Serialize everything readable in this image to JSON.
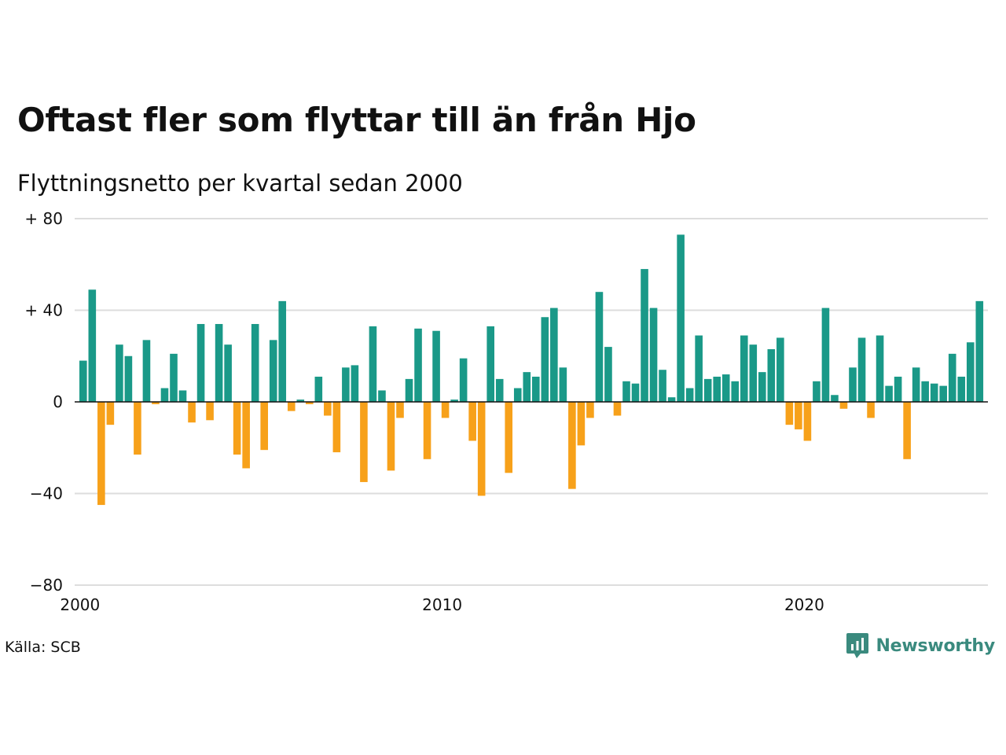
{
  "title": "Oftast fler som flyttar till än från Hjo",
  "subtitle": "Flyttningsnetto per kvartal sedan 2000",
  "source": "Källa: SCB",
  "brand": {
    "name": "Newsworthy",
    "icon": "newsworthy-logo-icon",
    "color": "#3a8a7e"
  },
  "colors": {
    "positive": "#1a9988",
    "negative": "#f7a11a",
    "grid": "#dddddd",
    "zero_line": "#111111"
  },
  "chart_data": {
    "type": "bar",
    "ylim": [
      -80,
      80
    ],
    "grid": true,
    "y_ticks": [
      {
        "value": 80,
        "label": "+ 80"
      },
      {
        "value": 40,
        "label": "+ 40"
      },
      {
        "value": 0,
        "label": "0"
      },
      {
        "value": -40,
        "label": "−40"
      },
      {
        "value": -80,
        "label": "−80"
      }
    ],
    "x_ticks": [
      "2000",
      "2010",
      "2020"
    ],
    "categories": [
      "2000 K1",
      "2000 K2",
      "2000 K3",
      "2000 K4",
      "2001 K1",
      "2001 K2",
      "2001 K3",
      "2001 K4",
      "2002 K1",
      "2002 K2",
      "2002 K3",
      "2002 K4",
      "2003 K1",
      "2003 K2",
      "2003 K3",
      "2003 K4",
      "2004 K1",
      "2004 K2",
      "2004 K3",
      "2004 K4",
      "2005 K1",
      "2005 K2",
      "2005 K3",
      "2005 K4",
      "2006 K1",
      "2006 K2",
      "2006 K3",
      "2006 K4",
      "2007 K1",
      "2007 K2",
      "2007 K3",
      "2007 K4",
      "2008 K1",
      "2008 K2",
      "2008 K3",
      "2008 K4",
      "2009 K1",
      "2009 K2",
      "2009 K3",
      "2009 K4",
      "2010 K1",
      "2010 K2",
      "2010 K3",
      "2010 K4",
      "2011 K1",
      "2011 K2",
      "2011 K3",
      "2011 K4",
      "2012 K1",
      "2012 K2",
      "2012 K3",
      "2012 K4",
      "2013 K1",
      "2013 K2",
      "2013 K3",
      "2013 K4",
      "2014 K1",
      "2014 K2",
      "2014 K3",
      "2014 K4",
      "2015 K1",
      "2015 K2",
      "2015 K3",
      "2015 K4",
      "2016 K1",
      "2016 K2",
      "2016 K3",
      "2016 K4",
      "2017 K1",
      "2017 K2",
      "2017 K3",
      "2017 K4",
      "2018 K1",
      "2018 K2",
      "2018 K3",
      "2018 K4",
      "2019 K1",
      "2019 K2",
      "2019 K3",
      "2019 K4",
      "2020 K1",
      "2020 K2",
      "2020 K3",
      "2020 K4",
      "2021 K1",
      "2021 K2",
      "2021 K3",
      "2021 K4",
      "2022 K1",
      "2022 K2",
      "2022 K3",
      "2022 K4",
      "2023 K1",
      "2023 K2",
      "2023 K3",
      "2023 K4",
      "2024 K1",
      "2024 K2",
      "2024 K3",
      "2024 K4",
      "2025 K1"
    ],
    "values": [
      18,
      49,
      -45,
      -10,
      25,
      20,
      -23,
      27,
      -1,
      6,
      21,
      5,
      -9,
      34,
      -8,
      34,
      25,
      -23,
      -29,
      34,
      -21,
      27,
      44,
      -4,
      1,
      -1,
      11,
      -6,
      -22,
      15,
      16,
      -35,
      33,
      5,
      -30,
      -7,
      10,
      32,
      -25,
      31,
      -7,
      1,
      19,
      -17,
      -41,
      33,
      10,
      -31,
      6,
      13,
      11,
      37,
      41,
      15,
      -38,
      -19,
      -7,
      48,
      24,
      -6,
      9,
      8,
      58,
      41,
      14,
      2,
      73,
      6,
      29,
      10,
      11,
      12,
      9,
      29,
      25,
      13,
      23,
      28,
      -10,
      -12,
      -17,
      9,
      41,
      3,
      -3,
      15,
      28,
      -7,
      29,
      7,
      11,
      -25,
      15,
      9,
      8,
      7,
      21,
      11,
      26,
      44,
      0
    ]
  }
}
